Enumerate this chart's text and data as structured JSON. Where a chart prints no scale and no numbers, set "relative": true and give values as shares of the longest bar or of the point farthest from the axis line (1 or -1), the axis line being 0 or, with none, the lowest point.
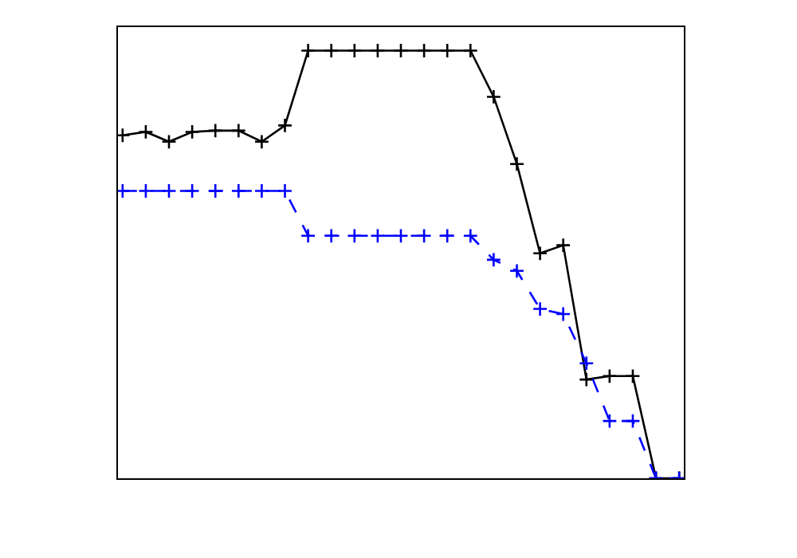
{
  "chart_data": {
    "type": "line",
    "relative": true,
    "categories": [
      null,
      null,
      null,
      null,
      null,
      null,
      null,
      null,
      null,
      null,
      null,
      null,
      null,
      null,
      null,
      null,
      null,
      null,
      null,
      null,
      null,
      null,
      null,
      null,
      null
    ],
    "series": [
      {
        "color": "#000000",
        "marker": "cross",
        "line_style": "solid",
        "values": [
          0.802,
          0.81,
          0.787,
          0.81,
          0.813,
          0.813,
          0.787,
          0.825,
          1,
          1,
          1,
          1,
          1,
          1,
          1,
          1,
          0.892,
          0.735,
          0.526,
          0.545,
          0.231,
          0.239,
          0.239,
          0,
          0
        ]
      },
      {
        "color": "#0000ff",
        "marker": "cross",
        "line_style": "dashed",
        "values": [
          0.672,
          0.672,
          0.672,
          0.672,
          0.672,
          0.672,
          0.672,
          0.672,
          0.567,
          0.567,
          0.567,
          0.567,
          0.567,
          0.567,
          0.567,
          0.567,
          0.511,
          0.485,
          0.396,
          0.384,
          0.269,
          0.134,
          0.134,
          0,
          0
        ]
      }
    ]
  }
}
